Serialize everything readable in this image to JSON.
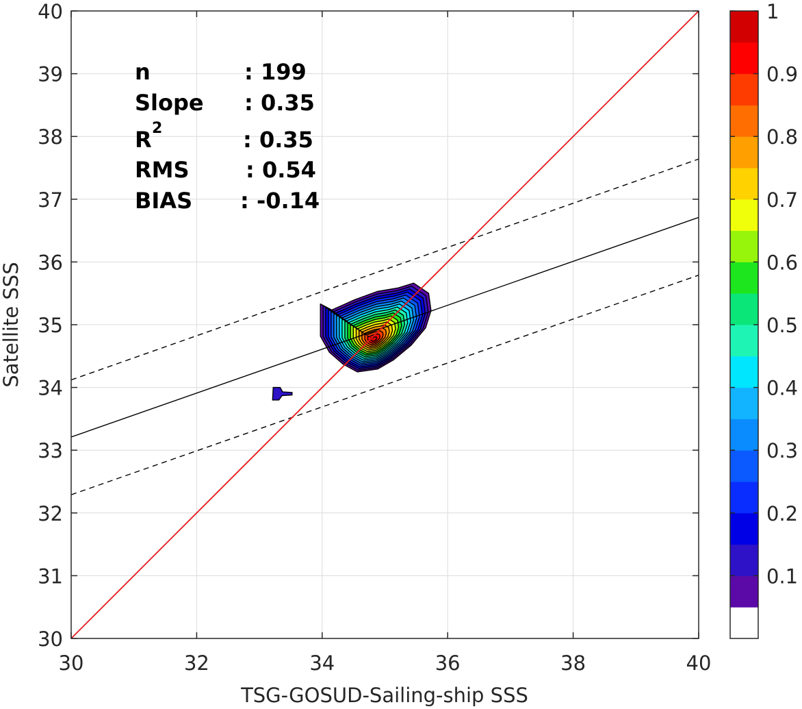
{
  "chart_data": {
    "type": "contour-scatter",
    "xlabel": "TSG-GOSUD-Sailing-ship SSS",
    "ylabel": "Satellite SSS",
    "xlim": [
      30,
      40
    ],
    "ylim": [
      30,
      40
    ],
    "xticks": [
      "30",
      "32",
      "34",
      "36",
      "38",
      "40"
    ],
    "yticks": [
      "30",
      "31",
      "32",
      "33",
      "34",
      "35",
      "36",
      "37",
      "38",
      "39",
      "40"
    ],
    "grid": true,
    "stats": [
      {
        "label": "n",
        "value": ": 199"
      },
      {
        "label": "Slope",
        "value": ": 0.35"
      },
      {
        "label": "R",
        "sup": "2",
        "value": ": 0.35"
      },
      {
        "label": "RMS",
        "value": ": 0.54"
      },
      {
        "label": "BIAS",
        "value": ": -0.14"
      }
    ],
    "lines": {
      "identity": {
        "x": [
          30,
          40
        ],
        "y": [
          30,
          40
        ],
        "color": "#e31a1c"
      },
      "regression": {
        "x": [
          30,
          40
        ],
        "y": [
          33.21,
          36.71
        ],
        "color": "#000000"
      },
      "upper_bound": {
        "x": [
          30,
          40
        ],
        "y": [
          34.12,
          37.64
        ],
        "color": "#000000",
        "style": "dashed"
      },
      "lower_bound": {
        "x": [
          30,
          40
        ],
        "y": [
          32.29,
          35.79
        ],
        "color": "#000000",
        "style": "dashed"
      }
    },
    "density_center": {
      "x": 34.82,
      "y": 34.76
    },
    "secondary_blob": {
      "x": 33.3,
      "y": 33.9
    },
    "colorbar": {
      "range": [
        0,
        1
      ],
      "tick_labels": [
        "0.1",
        "0.2",
        "0.3",
        "0.4",
        "0.5",
        "0.6",
        "0.7",
        "0.8",
        "0.9",
        "1"
      ],
      "tick_values": [
        0.1,
        0.2,
        0.3,
        0.4,
        0.5,
        0.6,
        0.7,
        0.8,
        0.9,
        1.0
      ],
      "levels": 20,
      "colors": [
        "#ffffff",
        "#5b0aa8",
        "#2d12c8",
        "#0000e6",
        "#0a2dff",
        "#0a5aff",
        "#0a8cff",
        "#12b4ff",
        "#00e6ff",
        "#1ef5b4",
        "#0ae678",
        "#1ee61e",
        "#96f50a",
        "#f0ff0a",
        "#ffd200",
        "#ffa000",
        "#ff6e00",
        "#ff3c00",
        "#ff0000",
        "#d20000",
        "#8c0000"
      ]
    }
  }
}
